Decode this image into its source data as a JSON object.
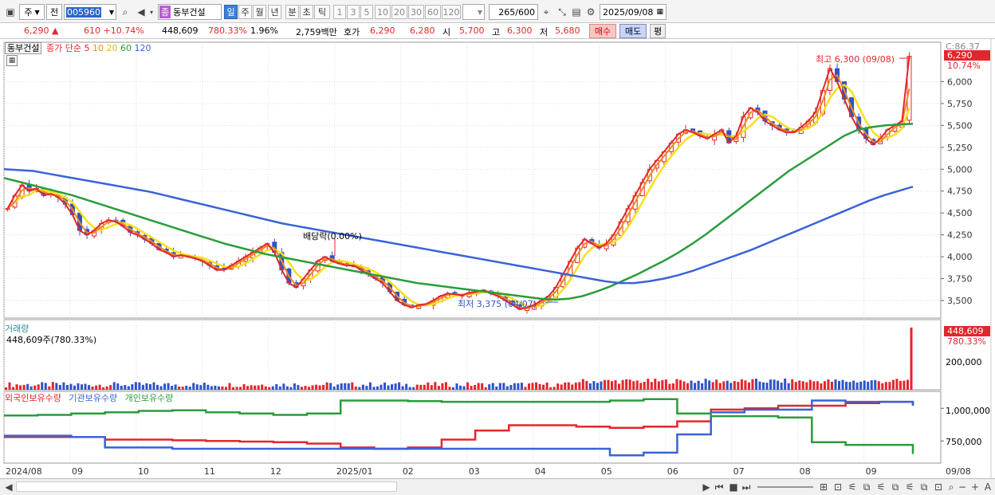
{
  "toolbar": {
    "market": "주",
    "view": "전",
    "code": "005960",
    "name_badge": "종",
    "name": "동부건설",
    "periods": [
      "일",
      "주",
      "월",
      "년",
      "분",
      "초",
      "틱"
    ],
    "period_active": "일",
    "numbers": [
      "1",
      "3",
      "5",
      "10",
      "20",
      "30",
      "60",
      "120"
    ],
    "count": "265",
    "count_max": "/600",
    "date": "2025/09/08"
  },
  "quote": {
    "price": "6,290",
    "arrow": "▲",
    "change": "610",
    "change_pct": "+10.74%",
    "volume": "448,609",
    "volume_pct": "780.33%",
    "turnover_pct": "1.96%",
    "amount": "2,759백만",
    "bid_label": "호가",
    "bid": "6,290",
    "ask": "6,280",
    "open_label": "시",
    "open": "5,700",
    "high_label": "고",
    "high": "6,300",
    "low_label": "저",
    "low": "5,680",
    "buy": "매수",
    "sell": "매도",
    "eval": "평"
  },
  "colors": {
    "up": "#e3262b",
    "down": "#2e53c9",
    "ma5": "#e3262b",
    "ma10": "#f08a1e",
    "ma20": "#f5e11c",
    "ma60": "#2a9c3c",
    "ma120": "#3a63d8",
    "foreign": "#e3262b",
    "inst": "#3a63d8",
    "indiv": "#2a9c3c"
  },
  "price_panel": {
    "legend_name": "동부건설",
    "legend_type": "종가 단순",
    "ma_periods": [
      "5",
      "10",
      "20",
      "60",
      "120"
    ],
    "right_top": "C:86.37",
    "last_price": "6,290",
    "last_pct": "10.74%",
    "high_annot": "최고 6,300 (09/08)",
    "low_annot": "최저 3,375 (04/07)",
    "div_annot": "배당락(0.00%)"
  },
  "volume_panel": {
    "title": "거래량",
    "value_line": "448,609주(780.33%)",
    "last_value": "448,609",
    "last_pct": "780.33%",
    "ytick": "200,000"
  },
  "holding_panel": {
    "legend": [
      "외국인보유수량",
      "기관보유수량",
      "개인보유수량"
    ],
    "yticks": [
      "1,000,000",
      "750,000"
    ]
  },
  "chart_data": [
    {
      "type": "candlestick",
      "title": "동부건설",
      "x_labels": [
        "2024/08",
        "09",
        "10",
        "11",
        "12",
        "2025/01",
        "02",
        "03",
        "04",
        "05",
        "06",
        "07",
        "08",
        "09",
        "09/08"
      ],
      "y_ticks": [
        3500,
        3750,
        4000,
        4250,
        4500,
        4750,
        5000,
        5250,
        5500,
        5750,
        6000
      ],
      "ylim": [
        3300,
        6450
      ],
      "close_path": [
        4550,
        4700,
        4820,
        4750,
        4780,
        4700,
        4720,
        4680,
        4600,
        4480,
        4300,
        4250,
        4300,
        4380,
        4420,
        4400,
        4350,
        4280,
        4250,
        4200,
        4150,
        4080,
        4050,
        4000,
        4020,
        4000,
        3980,
        3950,
        3900,
        3850,
        3850,
        3900,
        3950,
        4000,
        4050,
        4100,
        4150,
        4050,
        3850,
        3700,
        3650,
        3750,
        3850,
        3950,
        4000,
        3950,
        3920,
        3900,
        3900,
        3850,
        3800,
        3750,
        3700,
        3600,
        3500,
        3450,
        3420,
        3450,
        3460,
        3500,
        3550,
        3580,
        3570,
        3560,
        3590,
        3600,
        3620,
        3580,
        3550,
        3500,
        3450,
        3400,
        3420,
        3450,
        3500,
        3550,
        3650,
        3800,
        3950,
        4100,
        4200,
        4150,
        4100,
        4150,
        4250,
        4400,
        4550,
        4700,
        4850,
        5000,
        5100,
        5200,
        5300,
        5400,
        5450,
        5420,
        5380,
        5350,
        5400,
        5450,
        5300,
        5380,
        5600,
        5700,
        5650,
        5550,
        5500,
        5450,
        5420,
        5420,
        5480,
        5550,
        5650,
        5900,
        6150,
        6000,
        5800,
        5600,
        5450,
        5350,
        5280,
        5350,
        5450,
        5500,
        5550,
        6290
      ],
      "ma120_path": [
        5000,
        4990,
        4980,
        4950,
        4920,
        4890,
        4860,
        4830,
        4800,
        4770,
        4740,
        4700,
        4660,
        4620,
        4580,
        4540,
        4500,
        4460,
        4420,
        4380,
        4350,
        4320,
        4290,
        4260,
        4230,
        4200,
        4170,
        4140,
        4110,
        4080,
        4050,
        4020,
        3990,
        3960,
        3930,
        3900,
        3870,
        3840,
        3810,
        3780,
        3750,
        3720,
        3700,
        3700,
        3720,
        3750,
        3790,
        3840,
        3900,
        3960,
        4020,
        4080,
        4150,
        4220,
        4290,
        4360,
        4430,
        4500,
        4570,
        4640,
        4700,
        4750,
        4800
      ],
      "ma60_path": [
        4900,
        4860,
        4820,
        4780,
        4740,
        4700,
        4650,
        4600,
        4550,
        4500,
        4450,
        4400,
        4350,
        4300,
        4250,
        4200,
        4150,
        4110,
        4070,
        4030,
        4000,
        3970,
        3940,
        3910,
        3880,
        3850,
        3820,
        3790,
        3760,
        3730,
        3700,
        3680,
        3660,
        3640,
        3620,
        3600,
        3580,
        3560,
        3540,
        3520,
        3510,
        3520,
        3550,
        3600,
        3660,
        3730,
        3800,
        3880,
        3960,
        4050,
        4150,
        4260,
        4380,
        4500,
        4620,
        4740,
        4860,
        4980,
        5080,
        5180,
        5280,
        5380,
        5450,
        5480,
        5500,
        5510,
        5520
      ]
    },
    {
      "type": "bar",
      "title": "거래량",
      "last": 448609,
      "last_pct": "780.33%",
      "ytick": 200000
    },
    {
      "type": "line",
      "title": "보유수량",
      "y_ticks": [
        1000000,
        750000
      ],
      "series": [
        {
          "name": "외국인보유수량",
          "values": [
            780000,
            780000,
            780000,
            760000,
            760000,
            755000,
            750000,
            745000,
            740000,
            730000,
            700000,
            690000,
            700000,
            760000,
            830000,
            870000,
            870000,
            860000,
            850000,
            860000,
            900000,
            990000,
            1000000,
            1020000,
            1020000,
            1040000,
            1050000,
            1020000
          ]
        },
        {
          "name": "기관보유수량",
          "values": [
            790000,
            790000,
            780000,
            700000,
            700000,
            690000,
            690000,
            690000,
            690000,
            690000,
            690000,
            690000,
            690000,
            690000,
            690000,
            690000,
            690000,
            690000,
            640000,
            660000,
            800000,
            970000,
            990000,
            990000,
            1060000,
            1050000,
            1050000,
            1020000
          ]
        },
        {
          "name": "개인보유수량",
          "values": [
            945000,
            950000,
            960000,
            970000,
            980000,
            985000,
            970000,
            960000,
            950000,
            960000,
            1060000,
            1060000,
            1055000,
            1050000,
            1050000,
            1050000,
            1050000,
            1050000,
            1060000,
            1070000,
            960000,
            940000,
            940000,
            930000,
            740000,
            720000,
            720000,
            650000
          ]
        }
      ]
    }
  ]
}
